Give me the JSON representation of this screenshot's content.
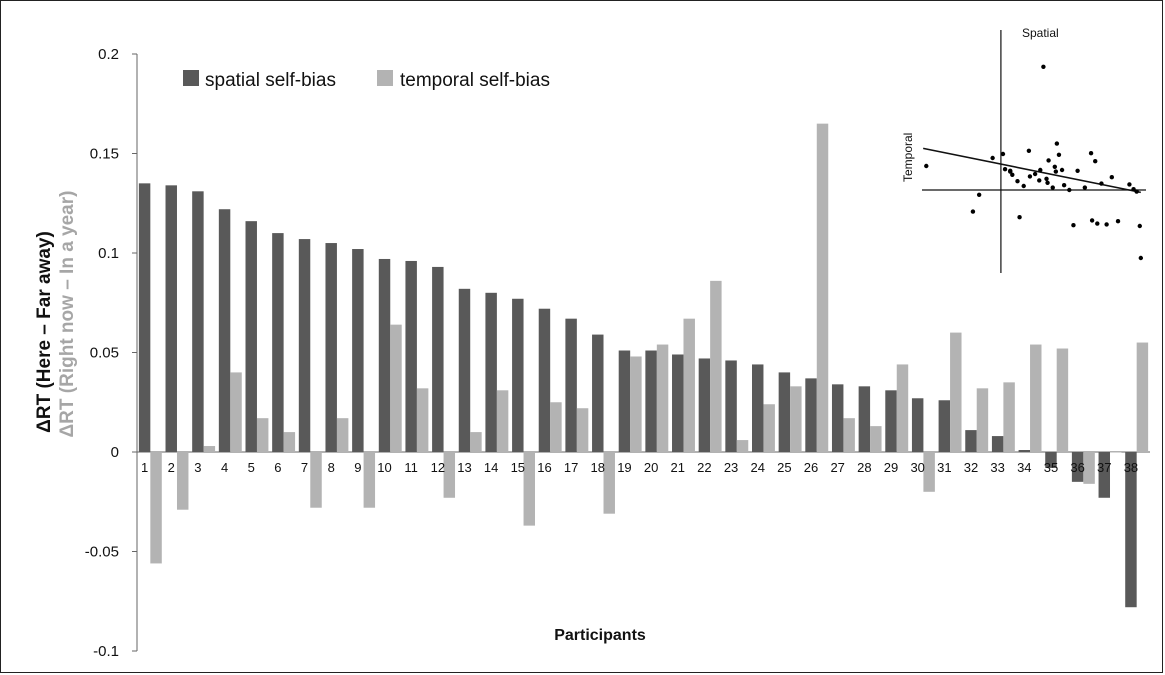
{
  "chart_data": {
    "type": "bar",
    "xlabel": "Participants",
    "ylabel_primary": "ΔRT (Here – Far away)",
    "ylabel_secondary": "ΔRT (Right now – In a year)",
    "ylim": [
      -0.1,
      0.2
    ],
    "yticks": [
      "0.2",
      "0.15",
      "0.1",
      "0.05",
      "0",
      "-0.05",
      "-0.1"
    ],
    "legend_position": "top-left",
    "categories": [
      "1",
      "2",
      "3",
      "4",
      "5",
      "6",
      "7",
      "8",
      "9",
      "10",
      "11",
      "12",
      "13",
      "14",
      "15",
      "16",
      "17",
      "18",
      "19",
      "20",
      "21",
      "22",
      "23",
      "24",
      "25",
      "26",
      "27",
      "28",
      "29",
      "30",
      "31",
      "32",
      "33",
      "34",
      "35",
      "36",
      "37",
      "38"
    ],
    "series": [
      {
        "name": "spatial self-bias",
        "color": "#595959",
        "values": [
          0.135,
          0.134,
          0.131,
          0.122,
          0.116,
          0.11,
          0.107,
          0.105,
          0.102,
          0.097,
          0.096,
          0.093,
          0.082,
          0.08,
          0.077,
          0.072,
          0.067,
          0.059,
          0.051,
          0.051,
          0.049,
          0.047,
          0.046,
          0.044,
          0.04,
          0.037,
          0.034,
          0.033,
          0.031,
          0.027,
          0.026,
          0.011,
          0.008,
          0.001,
          -0.008,
          -0.015,
          -0.023,
          -0.078
        ]
      },
      {
        "name": "temporal self-bias",
        "color": "#b3b3b3",
        "values": [
          -0.056,
          -0.029,
          0.003,
          0.04,
          0.017,
          0.01,
          -0.028,
          0.017,
          -0.028,
          0.064,
          0.032,
          -0.023,
          0.01,
          0.031,
          -0.037,
          0.025,
          0.022,
          -0.031,
          0.048,
          0.054,
          0.067,
          0.086,
          0.006,
          0.024,
          0.033,
          0.165,
          0.017,
          0.013,
          0.044,
          -0.02,
          0.06,
          0.032,
          0.035,
          0.054,
          0.052,
          -0.016,
          0.0,
          0.055
        ]
      }
    ],
    "inset": {
      "type": "scatter",
      "xlabel": "Temporal",
      "ylabel": "Spatial",
      "points": [
        [
          -0.072,
          0.03
        ],
        [
          -0.021,
          -0.006
        ],
        [
          -0.027,
          -0.027
        ],
        [
          -0.008,
          0.04
        ],
        [
          0.002,
          0.045
        ],
        [
          0.009,
          0.023
        ],
        [
          0.027,
          0.049
        ],
        [
          0.004,
          0.026
        ],
        [
          0.009,
          0.024
        ],
        [
          0.011,
          0.019
        ],
        [
          0.016,
          0.011
        ],
        [
          0.033,
          0.02
        ],
        [
          0.018,
          -0.034
        ],
        [
          0.022,
          0.005
        ],
        [
          0.028,
          0.017
        ],
        [
          0.037,
          0.012
        ],
        [
          0.045,
          0.009
        ],
        [
          0.053,
          0.023
        ],
        [
          0.046,
          0.037
        ],
        [
          0.052,
          0.029
        ],
        [
          0.054,
          0.058
        ],
        [
          0.056,
          0.044
        ],
        [
          0.038,
          0.025
        ],
        [
          0.044,
          0.014
        ],
        [
          0.05,
          0.003
        ],
        [
          0.041,
          0.154
        ],
        [
          0.059,
          0.025
        ],
        [
          0.061,
          0.006
        ],
        [
          0.07,
          -0.044
        ],
        [
          0.074,
          0.024
        ],
        [
          0.066,
          0.0
        ],
        [
          0.081,
          0.003
        ],
        [
          0.087,
          0.046
        ],
        [
          0.088,
          -0.038
        ],
        [
          0.093,
          -0.042
        ],
        [
          0.102,
          -0.043
        ],
        [
          0.113,
          -0.039
        ],
        [
          0.124,
          0.007
        ],
        [
          0.128,
          0.001
        ],
        [
          0.107,
          0.016
        ],
        [
          0.097,
          0.008
        ],
        [
          0.131,
          -0.002
        ],
        [
          0.134,
          -0.045
        ],
        [
          0.135,
          -0.085
        ],
        [
          0.091,
          0.036
        ]
      ],
      "trend": [
        [
          -0.075,
          0.052
        ],
        [
          0.135,
          -0.003
        ]
      ],
      "xlim": [
        -0.08,
        0.14
      ],
      "ylim": [
        -0.1,
        0.2
      ]
    }
  }
}
